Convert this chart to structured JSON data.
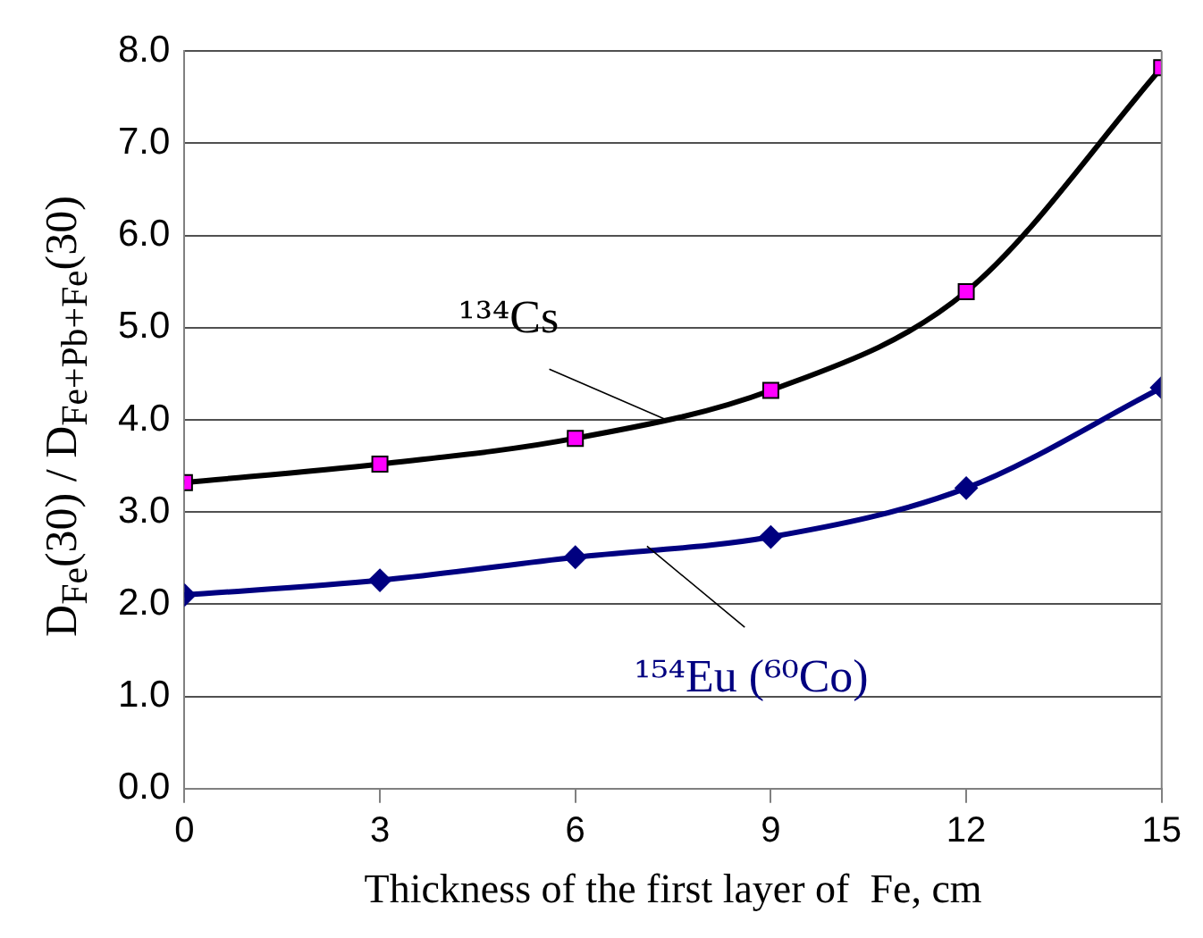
{
  "chart_data": {
    "type": "line",
    "xlabel": "Thickness of the first layer of  Fe, cm",
    "ylabel": "D$_{Fe}$(30) / D$_{Fe+Pb+Fe}$(30)",
    "x": [
      0,
      3,
      6,
      9,
      12,
      15
    ],
    "series": [
      {
        "name": "¹³⁴Cs",
        "color": "#000000",
        "marker": "square",
        "values": [
          3.32,
          3.52,
          3.8,
          4.32,
          5.39,
          7.82
        ]
      },
      {
        "name": "¹⁵⁴Eu (⁶⁰Co)",
        "color": "#000080",
        "marker": "diamond",
        "values": [
          2.1,
          2.26,
          2.51,
          2.73,
          3.26,
          4.35
        ]
      }
    ],
    "xlim": [
      0,
      15
    ],
    "xticks": [
      0,
      3,
      6,
      9,
      12,
      15
    ],
    "ylim": [
      0,
      8
    ],
    "yticks": [
      {
        "value": 0,
        "label": "0.0"
      },
      {
        "value": 1,
        "label": "1.0"
      },
      {
        "value": 2,
        "label": "2.0"
      },
      {
        "value": 3,
        "label": "3.0"
      },
      {
        "value": 4,
        "label": "4.0"
      },
      {
        "value": 5,
        "label": "5.0"
      },
      {
        "value": 6,
        "label": "6.0"
      },
      {
        "value": 7,
        "label": "7.0"
      },
      {
        "value": 8,
        "label": "8.0"
      }
    ],
    "grid": "y"
  }
}
